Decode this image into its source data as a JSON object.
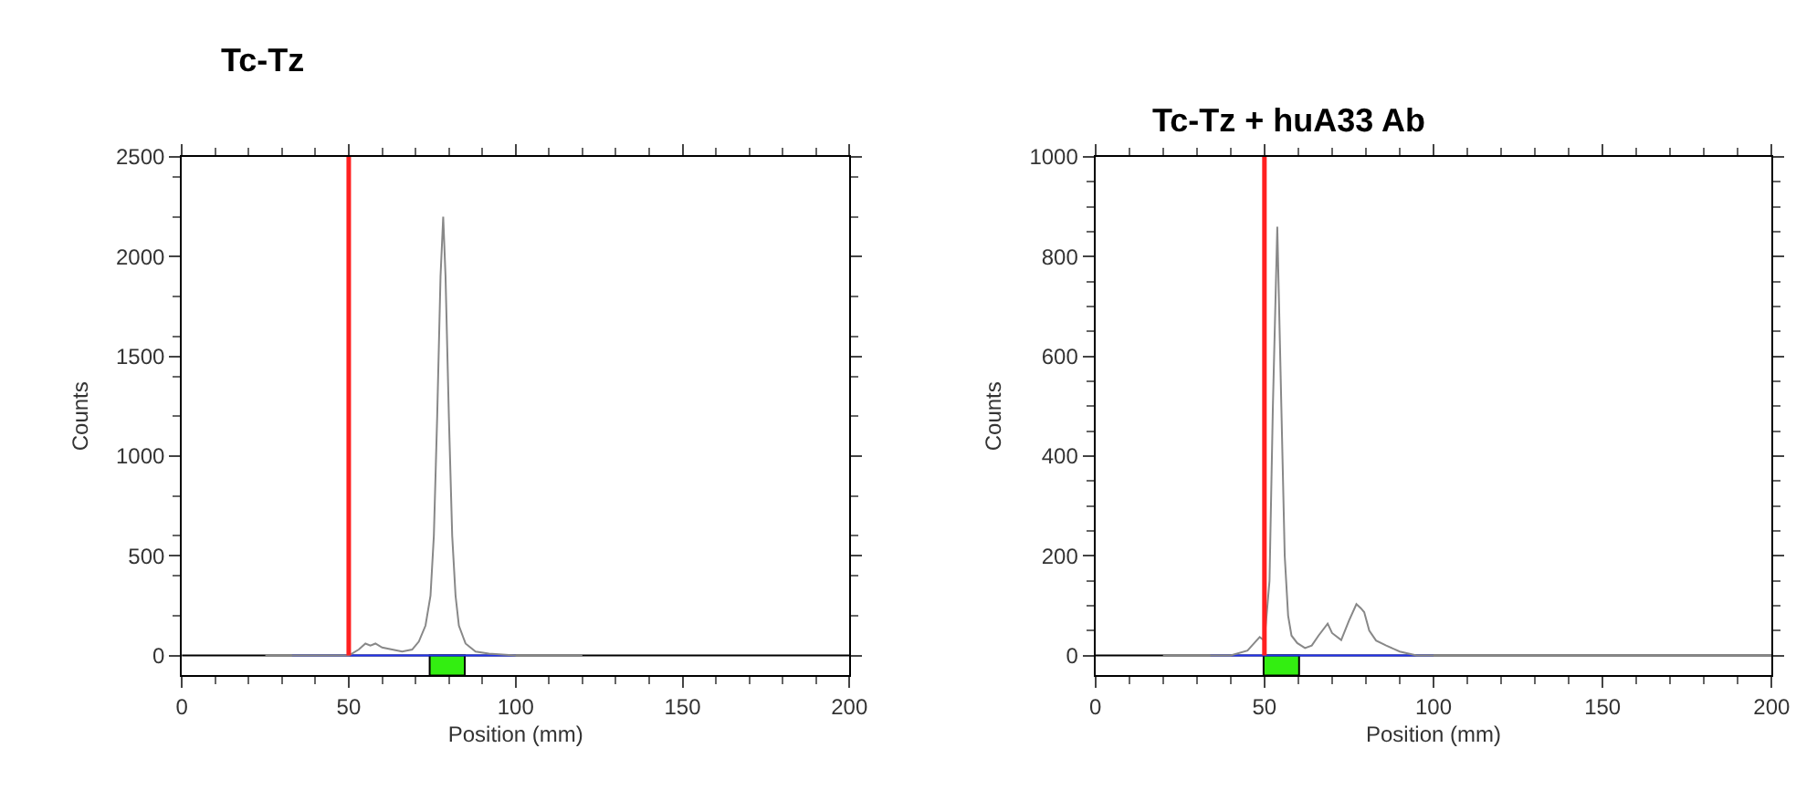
{
  "chart_data": [
    {
      "type": "line",
      "title": "Tc-Tz",
      "xlabel": "Position (mm)",
      "ylabel": "Counts",
      "xlim": [
        0,
        200
      ],
      "ylim": [
        -100,
        2500
      ],
      "xticks": [
        0,
        50,
        100,
        150,
        200
      ],
      "yticks": [
        0,
        500,
        1000,
        1500,
        2000,
        2500
      ],
      "grid": false,
      "series": [
        {
          "color": "#2233ee",
          "x": [
            33,
            100
          ],
          "values": [
            0,
            0
          ]
        },
        {
          "color": "#888888",
          "x": [
            25,
            45,
            50,
            53,
            55,
            56.5,
            58,
            60,
            63,
            66,
            69,
            71,
            73,
            74.5,
            75.5,
            76.5,
            77.5,
            78.3,
            79,
            80,
            81,
            82,
            83,
            85,
            88,
            92,
            100,
            110,
            120
          ],
          "values": [
            0,
            0,
            0,
            30,
            60,
            50,
            60,
            40,
            30,
            20,
            30,
            70,
            150,
            300,
            600,
            1200,
            1900,
            2200,
            1900,
            1200,
            600,
            300,
            150,
            60,
            20,
            10,
            0,
            0,
            0
          ]
        },
        {
          "type": "bar",
          "color": "#33ee11",
          "x": [
            79.5
          ],
          "values": [
            -100
          ]
        }
      ],
      "ref_lines": [
        {
          "axis": "x",
          "value": 50,
          "color": "#ff2020"
        }
      ]
    },
    {
      "type": "line",
      "title": "Tc-Tz + huA33 Ab",
      "xlabel": "Position (mm)",
      "ylabel": "Counts",
      "xlim": [
        0,
        200
      ],
      "ylim": [
        -40,
        1000
      ],
      "xticks": [
        0,
        50,
        100,
        150,
        200
      ],
      "yticks": [
        0,
        200,
        400,
        600,
        800,
        1000
      ],
      "grid": false,
      "series": [
        {
          "color": "#2233ee",
          "x": [
            34,
            100
          ],
          "values": [
            0,
            0
          ]
        },
        {
          "color": "#888888",
          "x": [
            20,
            40,
            45,
            47,
            48.6,
            50,
            51.5,
            52.5,
            53.8,
            55,
            56,
            57,
            58,
            59.7,
            62,
            64,
            66,
            68.7,
            70,
            72.7,
            75,
            77.2,
            78.5,
            79.5,
            81,
            83,
            86,
            90,
            95,
            110,
            200
          ],
          "values": [
            0,
            0,
            10,
            25,
            37,
            30,
            150,
            500,
            860,
            500,
            200,
            80,
            40,
            25,
            15,
            20,
            40,
            64,
            45,
            31,
            70,
            103,
            95,
            87,
            50,
            30,
            20,
            8,
            0,
            0,
            0
          ]
        },
        {
          "type": "bar",
          "color": "#33ee11",
          "x": [
            55
          ],
          "values": [
            -40
          ]
        }
      ],
      "ref_lines": [
        {
          "axis": "x",
          "value": 50,
          "color": "#ff2020"
        }
      ]
    }
  ]
}
